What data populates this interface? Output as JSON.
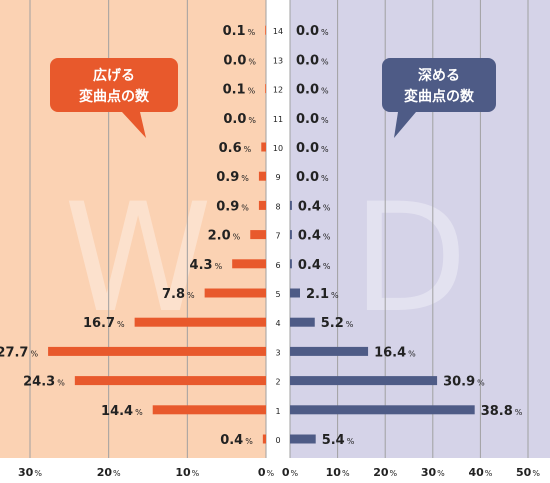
{
  "chart_data": {
    "type": "bar",
    "orientation": "horizontal-butterfly",
    "categories": [
      "0",
      "1",
      "2",
      "3",
      "4",
      "5",
      "6",
      "7",
      "8",
      "9",
      "10",
      "11",
      "12",
      "13",
      "14"
    ],
    "series": [
      {
        "side": "left",
        "values": [
          0.4,
          14.4,
          24.3,
          27.7,
          16.7,
          7.8,
          4.3,
          2.0,
          0.9,
          0.9,
          0.6,
          0.0,
          0.1,
          0.0,
          0.1
        ],
        "value_labels": [
          "0.4",
          "14.4",
          "24.3",
          "27.7",
          "16.7",
          "7.8",
          "4.3",
          "2.0",
          "0.9",
          "0.9",
          "0.6",
          "0.0",
          "0.1",
          "0.0",
          "0.1"
        ],
        "callout": [
          "広げる",
          "変曲点の数"
        ],
        "watermark": "W",
        "bar_color": "#e8592c",
        "background": "#fbd2b3",
        "xlim": [
          0,
          30
        ],
        "ticks": [
          "30",
          "20",
          "10",
          "0"
        ]
      },
      {
        "side": "right",
        "values": [
          5.4,
          38.8,
          30.9,
          16.4,
          5.2,
          2.1,
          0.4,
          0.4,
          0.4,
          0.0,
          0.0,
          0.0,
          0.0,
          0.0,
          0.0
        ],
        "value_labels": [
          "5.4",
          "38.8",
          "30.9",
          "16.4",
          "5.2",
          "2.1",
          "0.4",
          "0.4",
          "0.4",
          "0.0",
          "0.0",
          "0.0",
          "0.0",
          "0.0",
          "0.0"
        ],
        "callout": [
          "深める",
          "変曲点の数"
        ],
        "watermark": "D",
        "bar_color": "#4e5b86",
        "background": "#d5d3e8",
        "xlim": [
          0,
          50
        ],
        "ticks": [
          "0",
          "10",
          "20",
          "30",
          "40",
          "50"
        ]
      }
    ],
    "unit": "%",
    "grid": true
  }
}
